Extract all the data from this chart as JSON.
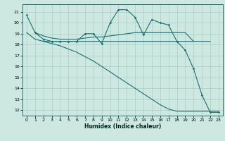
{
  "xlabel": "Humidex (Indice chaleur)",
  "bg_color": "#cce8e0",
  "grid_color": "#aaccc4",
  "line_color": "#1a7070",
  "xlim": [
    -0.5,
    23.5
  ],
  "ylim": [
    11.5,
    21.7
  ],
  "xticks": [
    0,
    1,
    2,
    3,
    4,
    5,
    6,
    7,
    8,
    9,
    10,
    11,
    12,
    13,
    14,
    15,
    16,
    17,
    18,
    19,
    20,
    21,
    22,
    23
  ],
  "yticks": [
    12,
    13,
    14,
    15,
    16,
    17,
    18,
    19,
    20,
    21
  ],
  "line1_x": [
    0,
    1,
    2,
    3,
    4,
    5,
    6,
    7,
    8,
    9,
    10,
    11,
    12,
    13,
    14,
    15,
    16,
    17,
    18,
    19,
    20,
    21,
    22,
    23
  ],
  "line1_y": [
    20.7,
    19.1,
    18.5,
    18.3,
    18.3,
    18.3,
    18.3,
    19.0,
    19.0,
    18.1,
    20.0,
    21.2,
    21.2,
    20.5,
    18.9,
    20.3,
    20.0,
    19.8,
    18.3,
    17.5,
    15.8,
    13.4,
    11.8,
    11.8
  ],
  "line2_x": [
    1,
    2,
    3,
    4,
    5,
    6,
    7,
    8,
    9,
    10,
    11,
    12,
    13,
    14,
    15,
    16,
    17,
    18,
    19,
    20
  ],
  "line2_y": [
    19.1,
    18.8,
    18.6,
    18.5,
    18.5,
    18.5,
    18.6,
    18.7,
    18.7,
    18.8,
    18.9,
    19.0,
    19.1,
    19.1,
    19.1,
    19.1,
    19.1,
    19.1,
    19.1,
    18.3
  ],
  "line3_x": [
    0,
    1,
    2,
    3,
    4,
    5,
    6,
    7,
    8,
    9,
    10,
    11,
    12,
    13,
    14,
    15,
    16,
    17,
    18,
    19,
    20,
    21,
    22
  ],
  "line3_y": [
    19.1,
    18.5,
    18.3,
    18.3,
    18.3,
    18.3,
    18.3,
    18.3,
    18.3,
    18.3,
    18.3,
    18.3,
    18.3,
    18.3,
    18.3,
    18.3,
    18.3,
    18.3,
    18.3,
    18.3,
    18.3,
    18.3,
    18.3
  ],
  "line4_x": [
    2,
    3,
    4,
    5,
    6,
    7,
    8,
    9,
    10,
    11,
    12,
    13,
    14,
    15,
    16,
    17,
    18,
    19,
    20,
    21,
    22,
    23
  ],
  "line4_y": [
    18.3,
    18.1,
    17.9,
    17.6,
    17.3,
    16.9,
    16.5,
    16.0,
    15.5,
    15.0,
    14.5,
    14.0,
    13.5,
    13.0,
    12.5,
    12.1,
    11.9,
    11.9,
    11.9,
    11.9,
    11.9,
    11.9
  ]
}
